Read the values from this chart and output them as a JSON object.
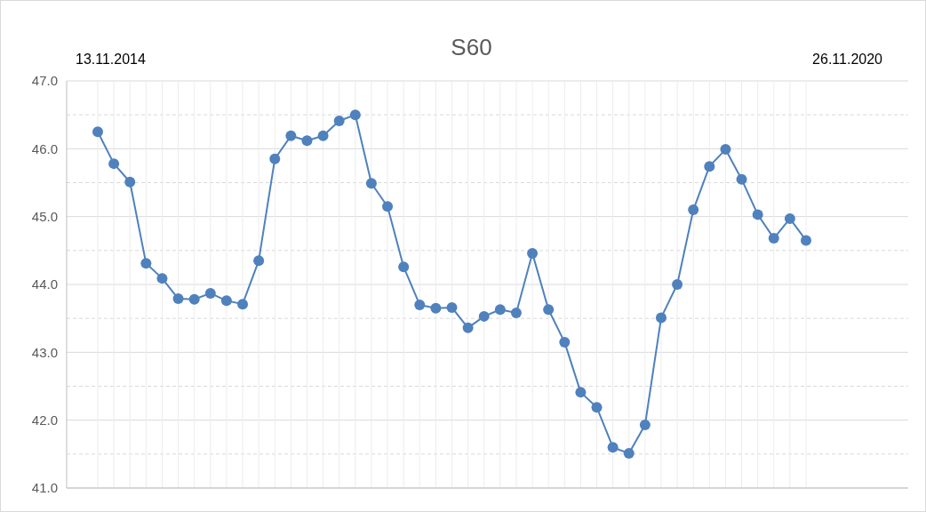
{
  "chart_data": {
    "type": "line",
    "title": "S60",
    "annotations": [
      "13.11.2014",
      "26.11.2020"
    ],
    "categories": [
      null,
      null,
      null,
      null,
      null,
      null,
      null,
      null,
      null,
      null,
      null,
      null,
      null,
      null,
      null,
      null,
      null,
      null,
      null,
      null,
      null,
      null,
      null,
      null,
      null,
      null,
      null,
      null,
      null,
      null,
      null,
      null,
      null,
      null,
      null,
      null,
      null,
      null,
      null,
      null,
      null,
      null,
      null,
      null,
      null
    ],
    "ylim": [
      41,
      47
    ],
    "yticks": [
      {
        "value": 41,
        "label": "41.0"
      },
      {
        "value": 41.5,
        "label": null
      },
      {
        "value": 42,
        "label": "42.0"
      },
      {
        "value": 42.5,
        "label": null
      },
      {
        "value": 43,
        "label": "43.0"
      },
      {
        "value": 43.5,
        "label": null
      },
      {
        "value": 44,
        "label": "44.0"
      },
      {
        "value": 44.5,
        "label": null
      },
      {
        "value": 45,
        "label": "45.0"
      },
      {
        "value": 45.5,
        "label": null
      },
      {
        "value": 46,
        "label": "46.0"
      },
      {
        "value": 46.5,
        "label": null
      },
      {
        "value": 47,
        "label": "47.0"
      }
    ],
    "tick_labels": "y",
    "grid": true,
    "marker": "circle",
    "line_style": "solid",
    "series": [
      {
        "color": "#4f81bd",
        "values": [
          46.25,
          45.78,
          45.51,
          44.31,
          44.09,
          43.79,
          43.78,
          43.87,
          43.76,
          43.71,
          44.35,
          45.85,
          46.19,
          46.12,
          46.19,
          46.41,
          46.5,
          45.49,
          45.15,
          44.26,
          43.7,
          43.65,
          43.66,
          43.36,
          43.53,
          43.63,
          43.58,
          44.46,
          43.63,
          43.15,
          42.41,
          42.19,
          41.6,
          41.51,
          41.93,
          43.51,
          44.0,
          45.1,
          45.74,
          45.99,
          45.55,
          45.03,
          44.68,
          44.97,
          44.65
        ]
      }
    ]
  }
}
